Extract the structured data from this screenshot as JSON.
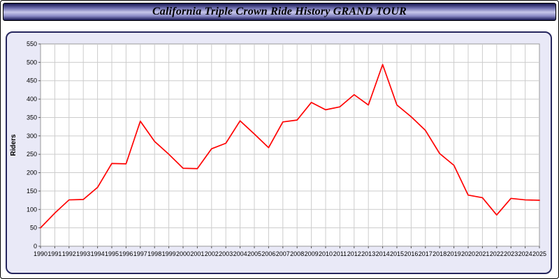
{
  "header": {
    "title": "California Triple Crown Ride History GRAND TOUR"
  },
  "colors": {
    "line": "#ff0000",
    "panel_background": "#e9e9f7",
    "plot_background": "#ffffff",
    "gridline": "#cccccc",
    "plot_border": "#999999",
    "title_bar_dark": "#14144f",
    "title_bar_light": "#c7c7ea"
  },
  "chart_data": {
    "type": "line",
    "title": "California Triple Crown Ride History GRAND TOUR",
    "xlabel": "",
    "ylabel": "Riders",
    "ylim": [
      0,
      550
    ],
    "ytick_step": 50,
    "grid": true,
    "legend": "none",
    "x": [
      1990,
      1991,
      1992,
      1993,
      1994,
      1995,
      1996,
      1997,
      1998,
      1999,
      2000,
      2001,
      2002,
      2003,
      2004,
      2005,
      2006,
      2007,
      2008,
      2009,
      2010,
      2011,
      2012,
      2013,
      2014,
      2015,
      2016,
      2017,
      2018,
      2019,
      2020,
      2021,
      2022,
      2023,
      2024,
      2025
    ],
    "series": [
      {
        "name": "Riders",
        "color": "#ff0000",
        "values": [
          50,
          90,
          126,
          127,
          160,
          225,
          224,
          340,
          285,
          250,
          212,
          211,
          265,
          280,
          341,
          305,
          268,
          338,
          343,
          391,
          371,
          379,
          412,
          384,
          494,
          384,
          352,
          315,
          252,
          220,
          139,
          132,
          85,
          130,
          126,
          125
        ]
      }
    ]
  }
}
